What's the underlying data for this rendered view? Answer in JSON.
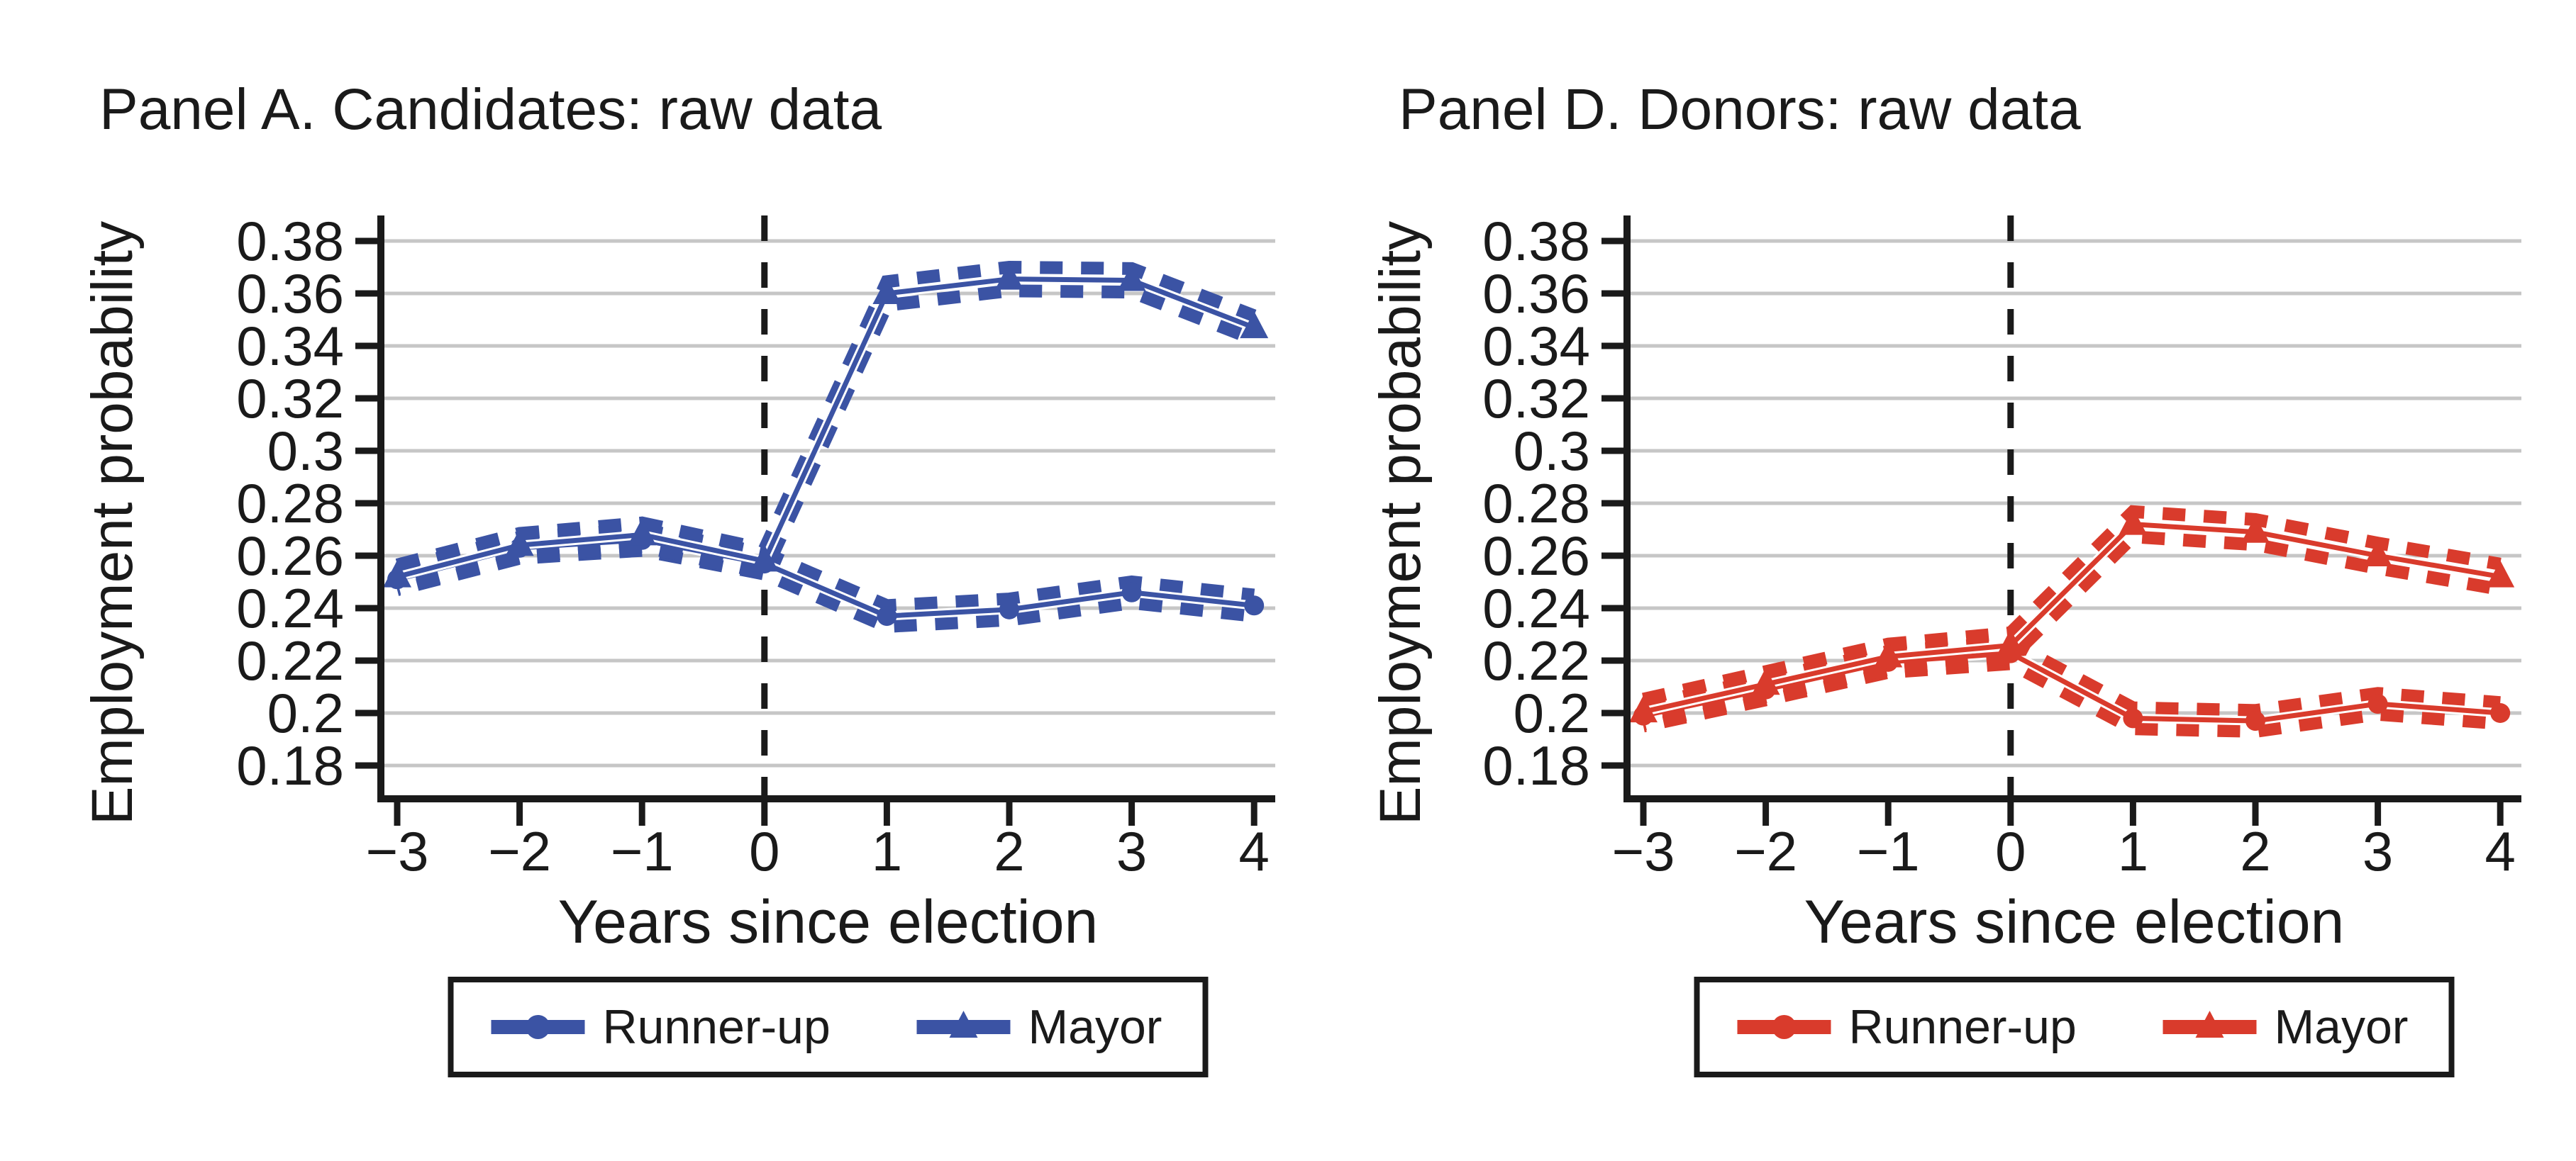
{
  "figure": {
    "background": "#ffffff",
    "text_color": "#1a1a1a",
    "gridline_color": "#c6c6c6",
    "event_line_color": "#1a1a1a"
  },
  "chart_data": [
    {
      "type": "line",
      "title": "Panel A. Candidates: raw data",
      "xlabel": "Years since election",
      "ylabel": "Employment probability",
      "x": [
        -3,
        -2,
        -1,
        0,
        1,
        2,
        3,
        4
      ],
      "xtick_labels": [
        "−3",
        "−2",
        "−1",
        "0",
        "1",
        "2",
        "3",
        "4"
      ],
      "yticks": [
        0.18,
        0.2,
        0.22,
        0.24,
        0.26,
        0.28,
        0.3,
        0.32,
        0.34,
        0.36,
        0.38
      ],
      "ytick_labels": [
        "0.18",
        "0.2",
        "0.22",
        "0.24",
        "0.26",
        "0.28",
        "0.3",
        "0.32",
        "0.34",
        "0.36",
        "0.38"
      ],
      "ylim": [
        0.175,
        0.39
      ],
      "grid": true,
      "event_line_x": 0,
      "legend_position": "bottom",
      "color": "#3b53a4",
      "series": [
        {
          "name": "Runner-up",
          "marker": "circle",
          "values": [
            0.251,
            0.263,
            0.266,
            0.257,
            0.237,
            0.2395,
            0.246,
            0.241
          ],
          "ci_halfwidth": 0.004
        },
        {
          "name": "Mayor",
          "marker": "triangle",
          "values": [
            0.252,
            0.264,
            0.268,
            0.258,
            0.36,
            0.3655,
            0.365,
            0.347
          ],
          "ci_halfwidth": 0.0045
        }
      ]
    },
    {
      "type": "line",
      "title": "Panel D. Donors: raw data",
      "xlabel": "Years since election",
      "ylabel": "Employment probability",
      "x": [
        -3,
        -2,
        -1,
        0,
        1,
        2,
        3,
        4
      ],
      "xtick_labels": [
        "−3",
        "−2",
        "−1",
        "0",
        "1",
        "2",
        "3",
        "4"
      ],
      "yticks": [
        0.18,
        0.2,
        0.22,
        0.24,
        0.26,
        0.28,
        0.3,
        0.32,
        0.34,
        0.36,
        0.38
      ],
      "ytick_labels": [
        "0.18",
        "0.2",
        "0.22",
        "0.24",
        "0.26",
        "0.28",
        "0.3",
        "0.32",
        "0.34",
        "0.36",
        "0.38"
      ],
      "ylim": [
        0.175,
        0.39
      ],
      "grid": true,
      "event_line_x": 0,
      "legend_position": "bottom",
      "color": "#d93b2c",
      "series": [
        {
          "name": "Runner-up",
          "marker": "circle",
          "values": [
            0.199,
            0.209,
            0.2195,
            0.2228,
            0.198,
            0.197,
            0.2035,
            0.2
          ],
          "ci_halfwidth": 0.004
        },
        {
          "name": "Mayor",
          "marker": "triangle",
          "values": [
            0.2005,
            0.211,
            0.2215,
            0.2258,
            0.272,
            0.269,
            0.26,
            0.252
          ],
          "ci_halfwidth": 0.0048
        }
      ]
    }
  ]
}
